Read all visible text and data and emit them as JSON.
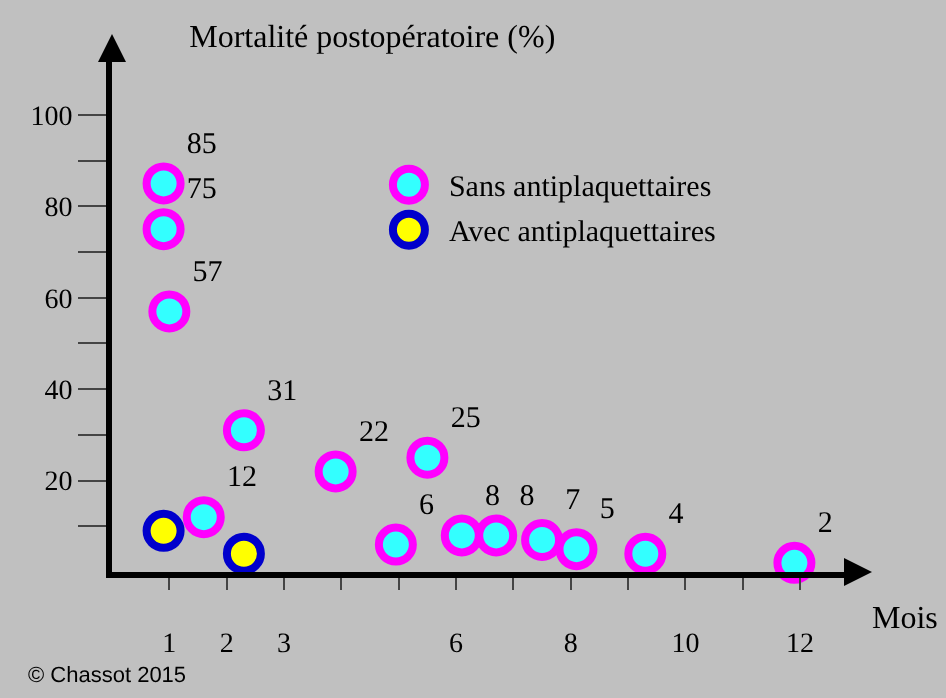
{
  "chart_data": {
    "type": "scatter",
    "title": "Mortalité postopératoire (%)",
    "xlabel": "Mois",
    "series": [
      {
        "name": "Sans antiplaquettaires",
        "color": "#ff00ff",
        "x": [
          0.9,
          0.9,
          1.0,
          1.6,
          2.3,
          3.9,
          4.95,
          5.5,
          6.1,
          6.7,
          7.5,
          8.1,
          9.3,
          11.9
        ],
        "values": [
          85,
          75,
          57,
          12,
          31,
          22,
          6,
          25,
          8,
          8,
          7,
          5,
          4,
          2
        ]
      },
      {
        "name": "Avec antiplaquettaires",
        "color": "#0000cc",
        "x": [
          0.9,
          2.3
        ],
        "values": [
          9,
          4
        ],
        "data_labels": false
      }
    ],
    "data_labels": true,
    "marker": "circle",
    "legend": "top right",
    "grid": false,
    "xlim": [
      0,
      12.8
    ],
    "ylim": [
      0,
      112
    ],
    "xticks": [
      1,
      2,
      3,
      {
        "value": 4,
        "label": null
      },
      {
        "value": 5,
        "label": null
      },
      6,
      {
        "value": 7,
        "label": null
      },
      8,
      {
        "value": 9,
        "label": null
      },
      10,
      {
        "value": 11,
        "label": null
      },
      12
    ],
    "yticks": [
      {
        "value": 10,
        "label": null
      },
      20,
      {
        "value": 30,
        "label": null
      },
      40,
      {
        "value": 50,
        "label": null
      },
      60,
      {
        "value": 70,
        "label": null
      },
      80,
      {
        "value": 90,
        "label": null
      },
      100
    ],
    "annotations": [
      "© Chassot 2015"
    ]
  }
}
